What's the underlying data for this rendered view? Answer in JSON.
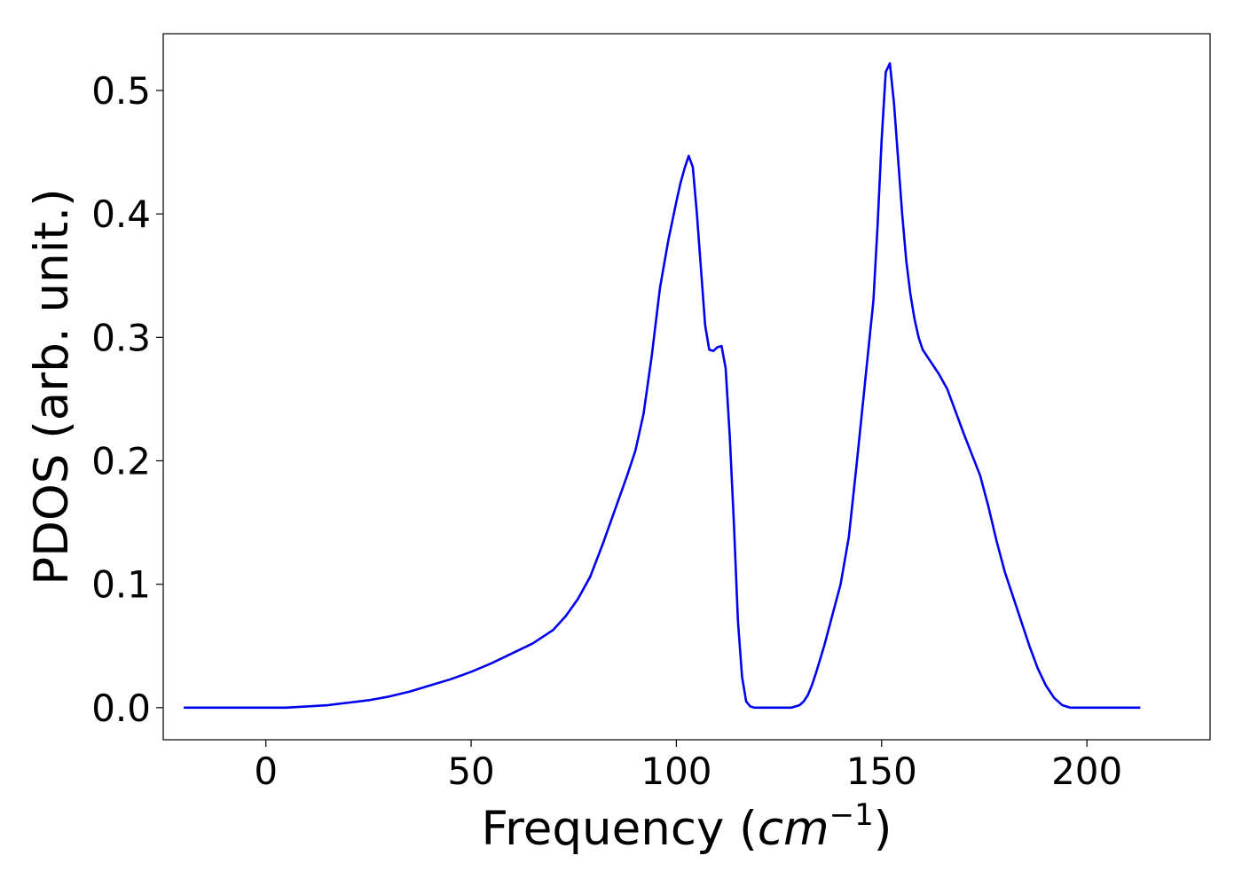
{
  "chart_data": {
    "type": "line",
    "title": "",
    "xlabel_main": "Frequency (",
    "xlabel_var": "cm",
    "xlabel_sup": "−1",
    "xlabel_close": ")",
    "ylabel": "PDOS (arb. unit.)",
    "xlim": [
      -25,
      230
    ],
    "ylim": [
      -0.026,
      0.546
    ],
    "grid": false,
    "legend": "none",
    "line_color": "#0000ee",
    "x_ticks": [
      0,
      50,
      100,
      150,
      200
    ],
    "x_tick_labels": [
      "0",
      "50",
      "100",
      "150",
      "200"
    ],
    "y_ticks": [
      0.0,
      0.1,
      0.2,
      0.3,
      0.4,
      0.5
    ],
    "y_tick_labels": [
      "0.0",
      "0.1",
      "0.2",
      "0.3",
      "0.4",
      "0.5"
    ],
    "series": [
      {
        "x": [
          -20,
          0,
          5,
          10,
          15,
          20,
          25,
          30,
          35,
          40,
          45,
          50,
          55,
          60,
          65,
          70,
          73,
          76,
          79,
          82,
          85,
          88,
          90,
          92,
          94,
          96,
          98,
          100,
          101,
          102,
          103,
          104,
          105,
          106,
          107,
          108,
          109,
          110,
          111,
          112,
          113,
          114,
          115,
          116,
          117,
          118,
          119,
          120,
          122,
          125,
          128,
          130,
          131,
          132,
          133,
          134,
          136,
          138,
          140,
          142,
          144,
          146,
          148,
          149,
          150,
          151,
          152,
          153,
          154,
          155,
          156,
          157,
          158,
          159,
          160,
          161,
          162,
          163,
          164,
          166,
          168,
          170,
          172,
          174,
          176,
          178,
          180,
          182,
          184,
          186,
          188,
          190,
          192,
          194,
          196,
          198,
          200,
          205,
          213
        ],
        "y": [
          0.0,
          0.0,
          0.0,
          0.001,
          0.002,
          0.004,
          0.006,
          0.009,
          0.013,
          0.018,
          0.023,
          0.029,
          0.036,
          0.044,
          0.052,
          0.063,
          0.074,
          0.088,
          0.106,
          0.132,
          0.16,
          0.188,
          0.208,
          0.238,
          0.285,
          0.34,
          0.378,
          0.41,
          0.425,
          0.437,
          0.447,
          0.438,
          0.4,
          0.355,
          0.31,
          0.29,
          0.289,
          0.292,
          0.293,
          0.275,
          0.22,
          0.15,
          0.07,
          0.025,
          0.005,
          0.001,
          0.0,
          0.0,
          0.0,
          0.0,
          0.0,
          0.002,
          0.005,
          0.01,
          0.018,
          0.028,
          0.05,
          0.075,
          0.1,
          0.138,
          0.2,
          0.265,
          0.33,
          0.39,
          0.46,
          0.515,
          0.522,
          0.49,
          0.445,
          0.4,
          0.362,
          0.335,
          0.315,
          0.3,
          0.29,
          0.285,
          0.28,
          0.275,
          0.27,
          0.258,
          0.24,
          0.222,
          0.205,
          0.188,
          0.163,
          0.135,
          0.11,
          0.09,
          0.07,
          0.05,
          0.032,
          0.018,
          0.008,
          0.002,
          0.0,
          0.0,
          0.0,
          0.0,
          0.0
        ]
      }
    ]
  }
}
